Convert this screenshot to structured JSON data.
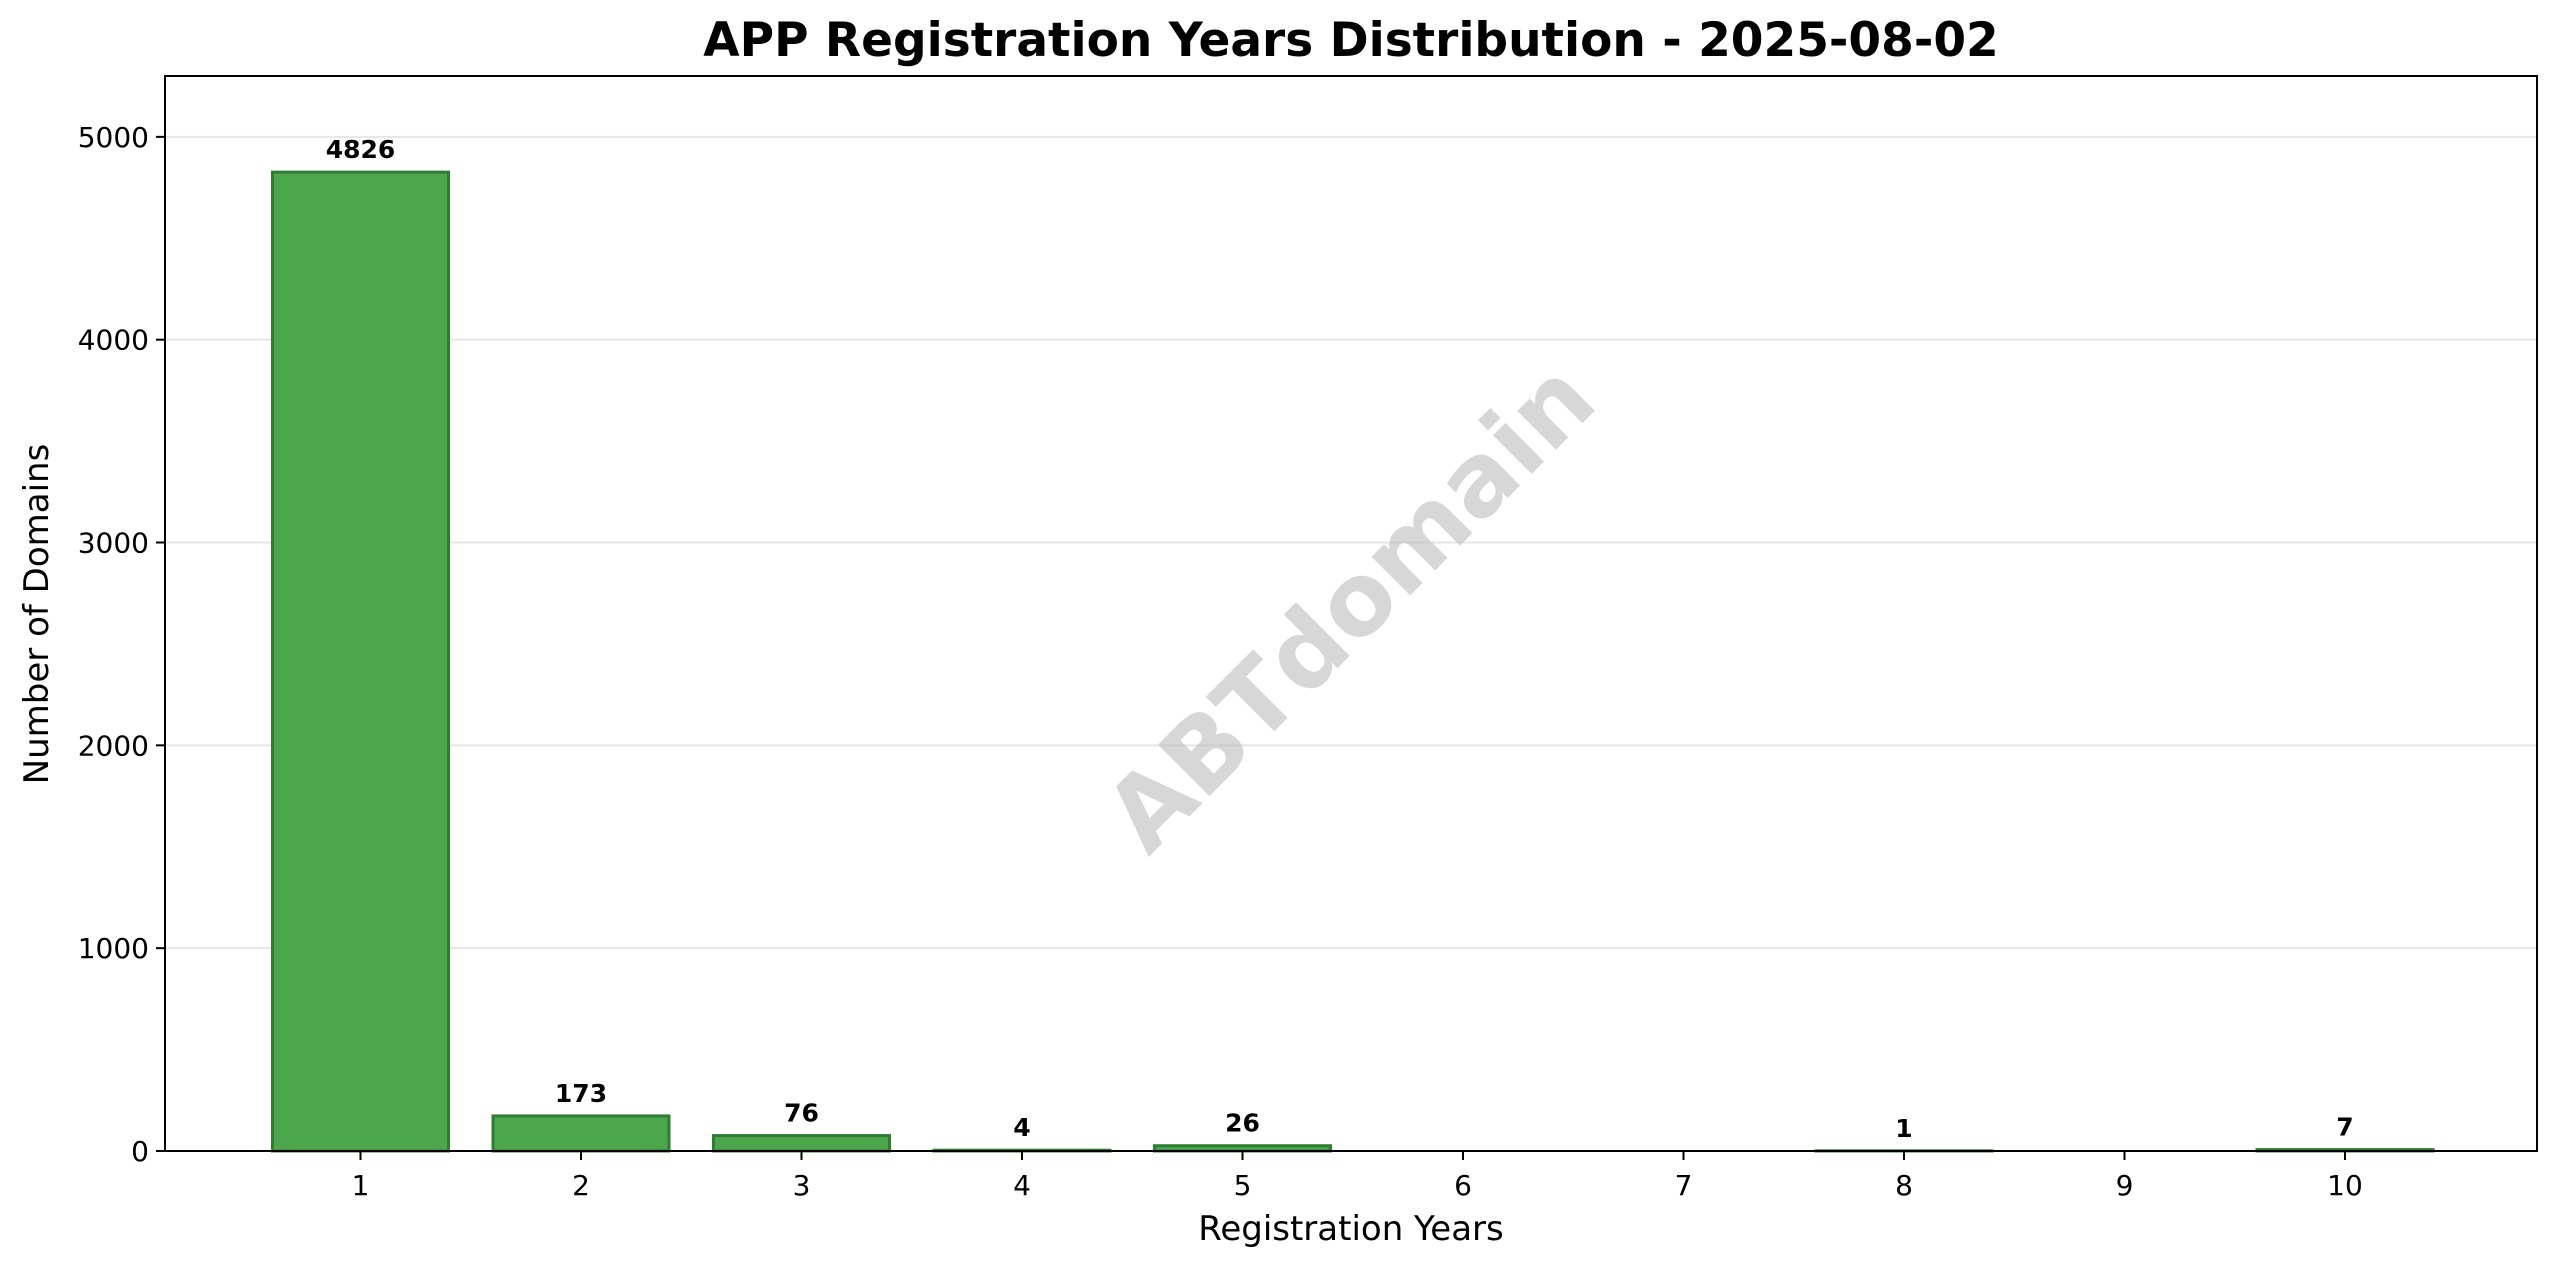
{
  "chart_data": {
    "type": "bar",
    "title": "APP Registration Years Distribution - 2025-08-02",
    "xlabel": "Registration Years",
    "ylabel": "Number of Domains",
    "categories": [
      "1",
      "2",
      "3",
      "4",
      "5",
      "6",
      "7",
      "8",
      "9",
      "10"
    ],
    "values": [
      4826,
      173,
      76,
      4,
      26,
      0,
      0,
      1,
      0,
      7
    ],
    "data_labels": [
      "4826",
      "173",
      "76",
      "4",
      "26",
      "",
      "",
      "1",
      "",
      "7"
    ],
    "ylim": [
      0,
      5300
    ],
    "yticks": [
      0,
      1000,
      2000,
      3000,
      4000,
      5000
    ],
    "grid": "horizontal",
    "bar_color": "#4ca64c",
    "bar_edge_color": "#2e7d32",
    "grid_color": "#e6e6e6",
    "watermark": "ABTdomain"
  }
}
